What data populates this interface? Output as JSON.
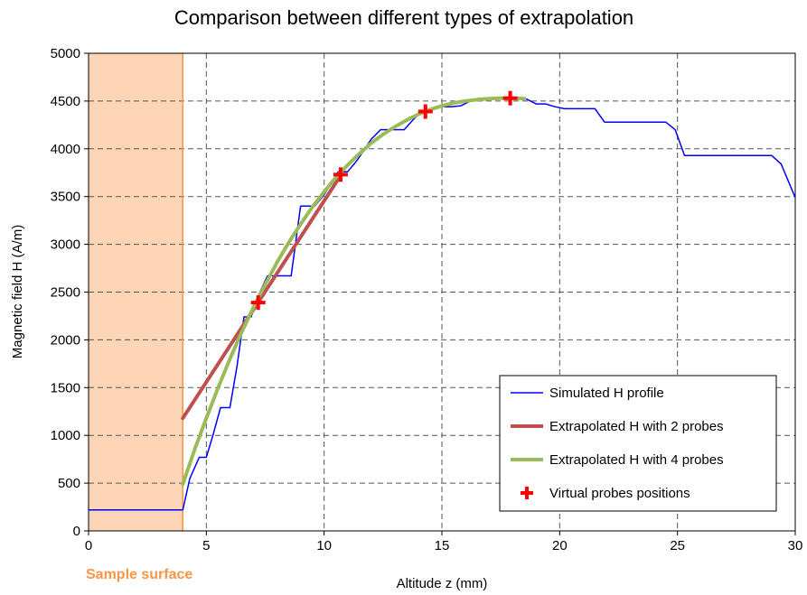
{
  "chart_data": {
    "type": "line",
    "title": "Comparison between different types of extrapolation",
    "xlabel": "Altitude z (mm)",
    "ylabel": "Magnetic field H (A/m)",
    "xlim": [
      0,
      30
    ],
    "ylim": [
      0,
      5000
    ],
    "x_ticks": [
      0,
      5,
      10,
      15,
      20,
      25,
      30
    ],
    "y_ticks": [
      0,
      500,
      1000,
      1500,
      2000,
      2500,
      3000,
      3500,
      4000,
      4500,
      5000
    ],
    "x_tick_labels": [
      "0",
      "5",
      "10",
      "15",
      "20",
      "25",
      "30"
    ],
    "y_tick_labels": [
      "0",
      "500",
      "1000",
      "1500",
      "2000",
      "2500",
      "3000",
      "3500",
      "4000",
      "4500",
      "5000"
    ],
    "grid": true,
    "legend_position": "bottom-right",
    "annotation": {
      "text": "Sample surface",
      "x_range": [
        0,
        4
      ],
      "fill_color": "#fbd5b5",
      "line_color": "#f79646",
      "text_color": "#f79646"
    },
    "series": [
      {
        "name": "Simulated H profile",
        "style": "line",
        "color": "#0000ff",
        "x": [
          0,
          4,
          4.3,
          4.7,
          5.0,
          5.3,
          5.6,
          6.0,
          6.3,
          6.6,
          6.9,
          7.2,
          7.6,
          7.9,
          8.3,
          8.6,
          9.0,
          9.3,
          9.6,
          10.0,
          10.3,
          10.6,
          11.0,
          11.4,
          11.7,
          12.0,
          12.4,
          12.7,
          13.1,
          13.4,
          13.8,
          14.2,
          14.6,
          15.0,
          15.4,
          15.8,
          16.2,
          16.6,
          17.0,
          17.4,
          17.8,
          18.2,
          18.6,
          19.0,
          19.4,
          19.8,
          20.2,
          21.5,
          21.9,
          24.5,
          24.9,
          25.3,
          29.0,
          29.4,
          30.0
        ],
        "y": [
          220,
          220,
          550,
          770,
          770,
          1020,
          1290,
          1290,
          1720,
          2240,
          2240,
          2460,
          2670,
          2670,
          2670,
          2670,
          3400,
          3400,
          3400,
          3520,
          3640,
          3760,
          3760,
          3880,
          3990,
          4100,
          4200,
          4200,
          4200,
          4200,
          4310,
          4400,
          4420,
          4440,
          4440,
          4450,
          4500,
          4510,
          4520,
          4530,
          4530,
          4530,
          4520,
          4470,
          4470,
          4440,
          4420,
          4420,
          4280,
          4280,
          4200,
          3930,
          3930,
          3840,
          3490
        ]
      },
      {
        "name": "Extrapolated H with 2 probes",
        "style": "line",
        "color": "#c0504d",
        "x": [
          4.0,
          10.7
        ],
        "y": [
          1180,
          3720
        ]
      },
      {
        "name": "Extrapolated H with 4 probes",
        "style": "line",
        "color": "#9bbb59",
        "x": [
          4.0,
          4.5,
          5.0,
          5.5,
          6.0,
          6.5,
          7.0,
          7.5,
          8.0,
          8.5,
          9.0,
          9.5,
          10.0,
          10.5,
          11.0,
          11.5,
          12.0,
          12.5,
          13.0,
          13.5,
          14.0,
          14.5,
          15.0,
          15.5,
          16.0,
          16.5,
          17.0,
          17.5,
          18.0,
          18.5
        ],
        "y": [
          490,
          850,
          1180,
          1500,
          1800,
          2080,
          2340,
          2580,
          2810,
          3020,
          3210,
          3390,
          3550,
          3700,
          3830,
          3950,
          4060,
          4150,
          4230,
          4300,
          4360,
          4410,
          4450,
          4480,
          4500,
          4515,
          4525,
          4530,
          4530,
          4525
        ]
      },
      {
        "name": "Virtual probes positions",
        "style": "markers",
        "marker": "plus",
        "color": "#ff0000",
        "x": [
          7.2,
          10.7,
          14.3,
          17.9
        ],
        "y": [
          2390,
          3730,
          4390,
          4530
        ]
      }
    ]
  }
}
